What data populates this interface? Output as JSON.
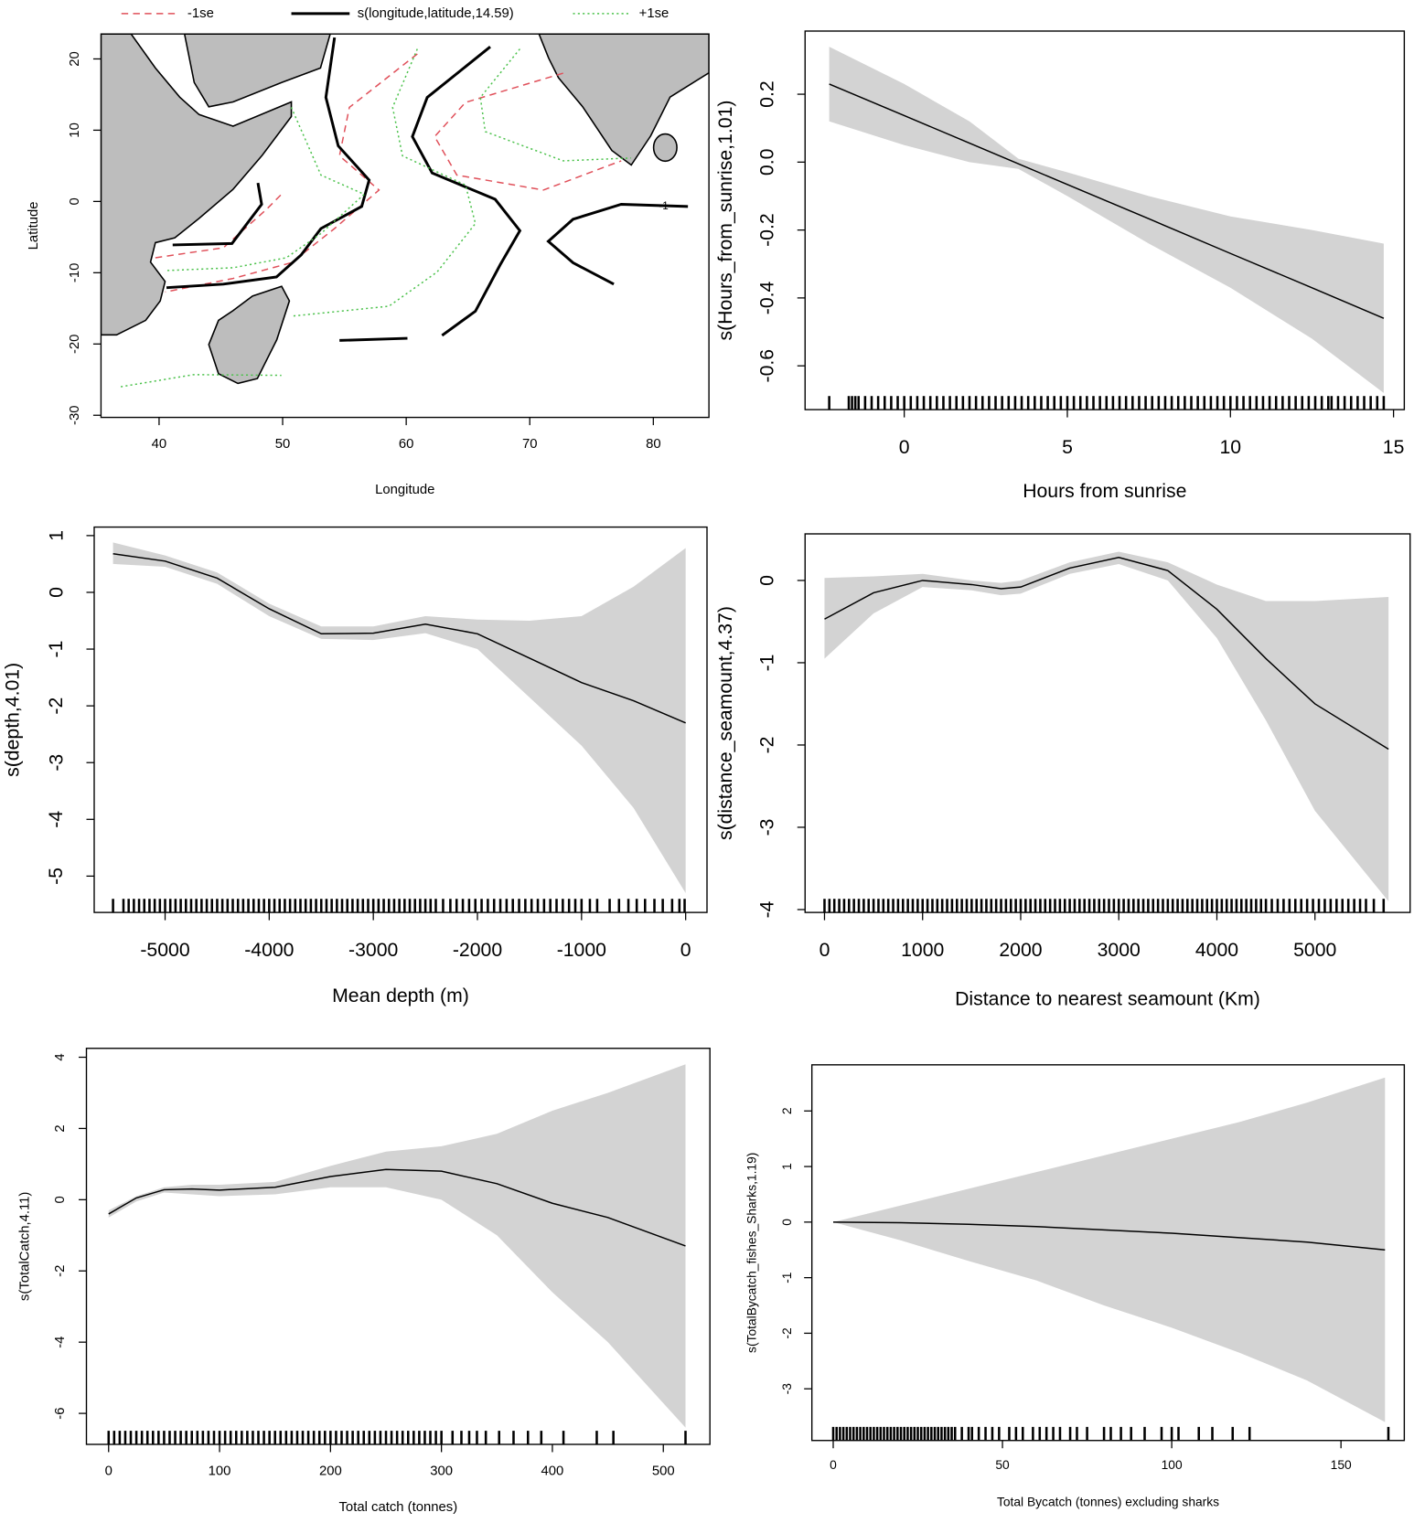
{
  "chart_data": [
    {
      "type": "contour",
      "xlabel": "Longitude",
      "ylabel": "Latitude",
      "xlim": [
        35.3,
        84.5
      ],
      "ylim": [
        -30.3,
        23.5
      ],
      "xticks": [
        40,
        50,
        60,
        70,
        80
      ],
      "yticks": [
        -30,
        -20,
        -10,
        0,
        10,
        20
      ],
      "series": [
        {
          "name": "-1se",
          "color": "#e0505a",
          "dash": "dashed",
          "lines": [
            {
              "x": [
                60.9,
                55.4,
                54.6,
                57.8,
                54.2,
                50.7,
                46.0,
                40.5
              ],
              "y": [
                20.7,
                13.2,
                6.4,
                1.6,
                -3.8,
                -8.6,
                -10.8,
                -12.7
              ]
            },
            {
              "x": [
                72.7,
                64.8,
                62.3,
                64.1,
                71.1,
                77.4
              ],
              "y": [
                18.0,
                13.9,
                9.1,
                3.7,
                1.6,
                5.7
              ]
            },
            {
              "x": [
                39.7,
                45.2,
                48.7,
                49.9
              ],
              "y": [
                -7.9,
                -6.5,
                -1.1,
                1.0
              ]
            }
          ]
        },
        {
          "name": "s(longitude,latitude,14.59)",
          "color": "#000000",
          "dash": "solid",
          "lines": [
            {
              "x": [
                54.2,
                53.5,
                54.5,
                57.0,
                56.4,
                53.1,
                51.5,
                49.5,
                45.2,
                40.6
              ],
              "y": [
                23.0,
                14.6,
                7.8,
                3.0,
                -0.7,
                -3.8,
                -7.5,
                -10.6,
                -11.6,
                -12.1
              ]
            },
            {
              "x": [
                66.8,
                61.7,
                60.5,
                62.1,
                67.2,
                69.2,
                67.6,
                65.6,
                62.9
              ],
              "y": [
                21.7,
                14.6,
                9.1,
                4.0,
                0.3,
                -4.1,
                -8.9,
                -15.4,
                -18.8
              ]
            },
            {
              "x": [
                82.8,
                77.4,
                73.5,
                71.5,
                73.5,
                76.8
              ],
              "y": [
                -0.7,
                -0.4,
                -2.5,
                -5.6,
                -8.6,
                -11.6
              ],
              "level": -1
            },
            {
              "x": [
                41.1,
                45.9,
                48.3,
                48.0
              ],
              "y": [
                -6.1,
                -5.9,
                -0.4,
                2.6
              ]
            },
            {
              "x": [
                54.6,
                60.1
              ],
              "y": [
                -19.5,
                -19.2
              ]
            }
          ]
        },
        {
          "name": "+1se",
          "color": "#4cc24c",
          "dash": "dotted",
          "lines": [
            {
              "x": [
                60.9,
                58.9,
                59.7,
                64.8,
                65.6,
                62.5,
                58.6,
                50.7
              ],
              "y": [
                21.4,
                13.2,
                6.4,
                2.3,
                -3.1,
                -9.9,
                -14.7,
                -16.1
              ]
            },
            {
              "x": [
                69.2,
                66.0,
                66.4,
                72.7,
                78.2
              ],
              "y": [
                21.4,
                14.6,
                9.8,
                5.7,
                6.1
              ]
            },
            {
              "x": [
                50.7,
                53.1,
                56.6,
                53.1,
                50.3,
                46.0,
                40.5
              ],
              "y": [
                13.2,
                3.7,
                1.0,
                -4.5,
                -7.9,
                -9.3,
                -9.7
              ]
            },
            {
              "x": [
                36.9,
                42.8,
                49.9
              ],
              "y": [
                -26.0,
                -24.3,
                -24.4
              ]
            }
          ]
        }
      ]
    },
    {
      "type": "line",
      "xlabel": "Hours from sunrise",
      "ylabel": "s(Hours_from_sunrise,1.01)",
      "xlim": [
        -3.04,
        15.33
      ],
      "ylim": [
        -0.729,
        0.386
      ],
      "xticks": [
        0,
        5,
        10,
        15
      ],
      "yticks": [
        -0.6,
        -0.4,
        -0.2,
        {
          "value": 0,
          "label": "0.0"
        },
        0.2
      ],
      "color": "#000000",
      "band_color": "#d3d3d3",
      "x": [
        -2.3,
        0,
        2,
        3.5,
        5,
        7.5,
        10,
        12.5,
        14.7
      ],
      "fit": [
        0.23,
        0.137,
        0.056,
        -0.005,
        -0.066,
        -0.167,
        -0.269,
        -0.37,
        -0.46
      ],
      "upper": [
        0.34,
        0.23,
        0.12,
        0.01,
        -0.03,
        -0.1,
        -0.16,
        -0.2,
        -0.24
      ],
      "lower": [
        0.12,
        0.05,
        0.0,
        -0.02,
        -0.1,
        -0.24,
        -0.37,
        -0.52,
        -0.68
      ],
      "rug": [
        -2.3,
        -1.7,
        -1.6,
        -1.5,
        -1.4,
        -1.2,
        -1,
        -0.8,
        -0.6,
        -0.4,
        -0.2,
        0,
        0.2,
        0.4,
        0.6,
        0.8,
        1,
        1.2,
        1.4,
        1.6,
        1.8,
        2,
        2.2,
        2.4,
        2.6,
        2.8,
        3,
        3.2,
        3.4,
        3.6,
        3.8,
        4,
        4.2,
        4.4,
        4.6,
        4.8,
        5,
        5.2,
        5.4,
        5.6,
        5.8,
        6,
        6.2,
        6.4,
        6.6,
        6.8,
        7,
        7.2,
        7.4,
        7.6,
        7.8,
        8,
        8.2,
        8.4,
        8.6,
        8.8,
        9,
        9.2,
        9.4,
        9.6,
        9.8,
        10,
        10.2,
        10.4,
        10.6,
        10.8,
        11,
        11.2,
        11.4,
        11.6,
        11.8,
        12,
        12.2,
        12.4,
        12.6,
        12.8,
        13,
        13.1,
        13.3,
        13.5,
        13.7,
        13.9,
        14.1,
        14.3,
        14.5,
        14.7
      ]
    },
    {
      "type": "line",
      "xlabel": "Mean depth (m)",
      "ylabel": "s(depth,4.01)",
      "xlim": [
        -5681,
        205
      ],
      "ylim": [
        -5.64,
        1.15
      ],
      "xticks": [
        -5000,
        -4000,
        -3000,
        -2000,
        -1000,
        0
      ],
      "yticks": [
        -5,
        -4,
        -3,
        -2,
        -1,
        0,
        1
      ],
      "color": "#000000",
      "band_color": "#d3d3d3",
      "x": [
        -5500,
        -5000,
        -4500,
        -4000,
        -3500,
        -3000,
        -2500,
        -2000,
        -1500,
        -1000,
        -500,
        0
      ],
      "fit": [
        0.68,
        0.55,
        0.25,
        -0.29,
        -0.73,
        -0.72,
        -0.56,
        -0.73,
        -1.16,
        -1.59,
        -1.91,
        -2.3
      ],
      "upper": [
        0.88,
        0.65,
        0.35,
        -0.2,
        -0.6,
        -0.6,
        -0.42,
        -0.48,
        -0.5,
        -0.42,
        0.1,
        0.78
      ],
      "lower": [
        0.5,
        0.45,
        0.15,
        -0.42,
        -0.82,
        -0.84,
        -0.72,
        -1.0,
        -1.85,
        -2.7,
        -3.8,
        -5.3
      ],
      "rug": [
        -5500,
        -5400,
        -5350,
        -5300,
        -5250,
        -5200,
        -5150,
        -5100,
        -5050,
        -5000,
        -4950,
        -4900,
        -4850,
        -4800,
        -4750,
        -4700,
        -4650,
        -4600,
        -4550,
        -4500,
        -4450,
        -4400,
        -4350,
        -4300,
        -4250,
        -4200,
        -4150,
        -4100,
        -4050,
        -4000,
        -3950,
        -3900,
        -3850,
        -3800,
        -3750,
        -3700,
        -3650,
        -3600,
        -3550,
        -3500,
        -3450,
        -3400,
        -3350,
        -3300,
        -3250,
        -3200,
        -3150,
        -3100,
        -3050,
        -3000,
        -2950,
        -2900,
        -2850,
        -2800,
        -2750,
        -2700,
        -2650,
        -2600,
        -2550,
        -2500,
        -2450,
        -2400,
        -2330,
        -2260,
        -2200,
        -2140,
        -2080,
        -2020,
        -1960,
        -1900,
        -1840,
        -1780,
        -1720,
        -1660,
        -1600,
        -1540,
        -1480,
        -1420,
        -1360,
        -1300,
        -1240,
        -1180,
        -1120,
        -1060,
        -1000,
        -920,
        -850,
        -730,
        -640,
        -550,
        -470,
        -390,
        -300,
        -220,
        -130,
        -60,
        -10
      ]
    },
    {
      "type": "line",
      "xlabel": "Distance to nearest seamount (Km)",
      "ylabel": "s(distance_seamount,4.37)",
      "xlim": [
        -198,
        5970
      ],
      "ylim": [
        -4.035,
        0.566
      ],
      "xticks": [
        0,
        1000,
        2000,
        3000,
        4000,
        5000
      ],
      "yticks": [
        -4,
        -3,
        -2,
        -1,
        0
      ],
      "color": "#000000",
      "band_color": "#d3d3d3",
      "x": [
        0,
        500,
        1000,
        1500,
        1800,
        2000,
        2500,
        3000,
        3500,
        4000,
        4500,
        5000,
        5750
      ],
      "fit": [
        -0.47,
        -0.15,
        0.0,
        -0.05,
        -0.1,
        -0.08,
        0.15,
        0.28,
        0.12,
        -0.35,
        -0.95,
        -1.5,
        -2.05
      ],
      "upper": [
        0.03,
        0.05,
        0.08,
        0.0,
        -0.03,
        0.0,
        0.22,
        0.35,
        0.22,
        -0.05,
        -0.25,
        -0.25,
        -0.2
      ],
      "lower": [
        -0.95,
        -0.4,
        -0.08,
        -0.12,
        -0.18,
        -0.16,
        0.08,
        0.2,
        0.0,
        -0.7,
        -1.7,
        -2.8,
        -3.9
      ],
      "rug": [
        0,
        50,
        100,
        150,
        200,
        250,
        300,
        350,
        400,
        450,
        500,
        550,
        600,
        650,
        700,
        750,
        800,
        850,
        900,
        950,
        1000,
        1050,
        1100,
        1150,
        1200,
        1250,
        1300,
        1350,
        1400,
        1450,
        1500,
        1550,
        1600,
        1650,
        1700,
        1750,
        1800,
        1850,
        1900,
        1950,
        2000,
        2050,
        2100,
        2150,
        2200,
        2250,
        2300,
        2350,
        2400,
        2450,
        2500,
        2550,
        2600,
        2650,
        2700,
        2750,
        2800,
        2850,
        2900,
        2950,
        3000,
        3050,
        3100,
        3150,
        3200,
        3250,
        3300,
        3350,
        3400,
        3450,
        3500,
        3550,
        3600,
        3650,
        3700,
        3750,
        3800,
        3850,
        3900,
        3950,
        4000,
        4050,
        4100,
        4150,
        4200,
        4250,
        4300,
        4350,
        4400,
        4450,
        4500,
        4560,
        4620,
        4680,
        4740,
        4800,
        4860,
        4920,
        4980,
        5040,
        5100,
        5160,
        5220,
        5280,
        5340,
        5400,
        5460,
        5520,
        5600,
        5700
      ]
    },
    {
      "type": "line",
      "xlabel": "Total catch (tonnes)",
      "ylabel": "s(TotalCatch,4.11)",
      "xlim": [
        -20,
        542
      ],
      "ylim": [
        -6.87,
        4.25
      ],
      "xticks": [
        0,
        100,
        200,
        300,
        400,
        500
      ],
      "yticks": [
        -6,
        -4,
        -2,
        0,
        2,
        4
      ],
      "color": "#000000",
      "band_color": "#d3d3d3",
      "x": [
        0,
        25,
        50,
        75,
        100,
        150,
        200,
        250,
        300,
        350,
        400,
        450,
        520
      ],
      "fit": [
        -0.4,
        0.05,
        0.28,
        0.3,
        0.27,
        0.35,
        0.65,
        0.85,
        0.8,
        0.45,
        -0.1,
        -0.5,
        -1.3
      ],
      "upper": [
        -0.3,
        0.1,
        0.35,
        0.42,
        0.42,
        0.5,
        0.95,
        1.35,
        1.5,
        1.85,
        2.5,
        3.0,
        3.8
      ],
      "lower": [
        -0.5,
        -0.05,
        0.2,
        0.15,
        0.1,
        0.15,
        0.35,
        0.35,
        0.0,
        -1.0,
        -2.6,
        -4.0,
        -6.4
      ],
      "rug": [
        0,
        5,
        10,
        15,
        20,
        25,
        30,
        35,
        40,
        45,
        50,
        55,
        60,
        65,
        70,
        75,
        80,
        85,
        90,
        95,
        100,
        105,
        110,
        115,
        120,
        125,
        130,
        135,
        140,
        145,
        150,
        155,
        160,
        165,
        170,
        175,
        180,
        185,
        190,
        195,
        200,
        205,
        210,
        215,
        220,
        225,
        230,
        235,
        240,
        245,
        250,
        255,
        260,
        265,
        270,
        275,
        280,
        285,
        290,
        295,
        300,
        310,
        318,
        325,
        332,
        340,
        352,
        365,
        378,
        390,
        410,
        440,
        455,
        520
      ]
    },
    {
      "type": "line",
      "xlabel": "Total Bycatch (tonnes) excluding sharks",
      "ylabel": "s(TotalBycatch_fishes_Sharks,1.19)",
      "xlim": [
        -6.3,
        168.7
      ],
      "ylim": [
        -3.93,
        2.83
      ],
      "xticks": [
        0,
        50,
        100,
        150
      ],
      "yticks": [
        -3,
        -2,
        -1,
        0,
        1,
        2
      ],
      "color": "#000000",
      "band_color": "#d3d3d3",
      "x": [
        0,
        20,
        40,
        60,
        80,
        100,
        120,
        140,
        163
      ],
      "fit": [
        0,
        -0.01,
        -0.04,
        -0.08,
        -0.14,
        -0.2,
        -0.28,
        -0.36,
        -0.5
      ],
      "upper": [
        0,
        0.3,
        0.6,
        0.9,
        1.2,
        1.5,
        1.8,
        2.15,
        2.6
      ],
      "lower": [
        0,
        -0.33,
        -0.7,
        -1.05,
        -1.5,
        -1.9,
        -2.35,
        -2.85,
        -3.6
      ],
      "rug": [
        0,
        1,
        2,
        3,
        4,
        5,
        6,
        7,
        8,
        9,
        10,
        11,
        12,
        13,
        14,
        15,
        16,
        17,
        18,
        19,
        20,
        21,
        22,
        23,
        24,
        25,
        26,
        27,
        28,
        29,
        30,
        31,
        32,
        33,
        34,
        35,
        36,
        38,
        40,
        41,
        43,
        45,
        47,
        49,
        52,
        54,
        56,
        59,
        61,
        63,
        65,
        67,
        70,
        72,
        75,
        80,
        82,
        85,
        88,
        92,
        97,
        100,
        102,
        108,
        112,
        118,
        123,
        164
      ]
    }
  ]
}
